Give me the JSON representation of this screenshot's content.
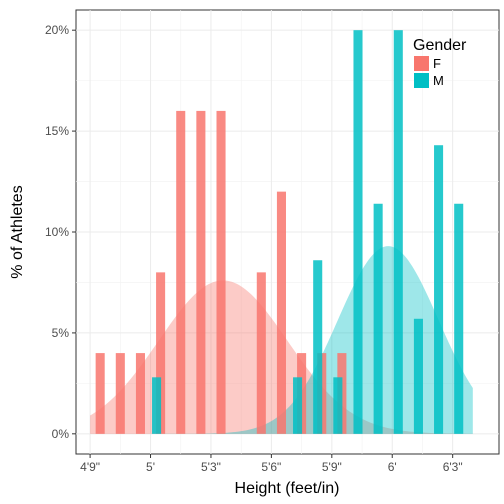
{
  "chart_data": {
    "type": "bar",
    "xlabel": "Height (feet/in)",
    "ylabel": "% of Athletes",
    "x_ticks": [
      {
        "value": 57,
        "label": "4'9\""
      },
      {
        "value": 60,
        "label": "5'"
      },
      {
        "value": 63,
        "label": "5'3\""
      },
      {
        "value": 66,
        "label": "5'6\""
      },
      {
        "value": 69,
        "label": "5'9\""
      },
      {
        "value": 72,
        "label": "6'"
      },
      {
        "value": 75,
        "label": "6'3\""
      }
    ],
    "y_ticks": [
      {
        "value": 0,
        "label": "0%"
      },
      {
        "value": 5,
        "label": "5%"
      },
      {
        "value": 10,
        "label": "10%"
      },
      {
        "value": 15,
        "label": "15%"
      },
      {
        "value": 20,
        "label": "20%"
      }
    ],
    "xlim": [
      56.3,
      77.3
    ],
    "ylim": [
      -1,
      21
    ],
    "grid": true,
    "legend": {
      "title": "Gender",
      "position": "top-right"
    },
    "series": [
      {
        "name": "F",
        "color": "#F8766D",
        "bars": [
          {
            "x": 57.5,
            "y": 4
          },
          {
            "x": 58.5,
            "y": 4
          },
          {
            "x": 59.5,
            "y": 4
          },
          {
            "x": 60.5,
            "y": 8
          },
          {
            "x": 61.5,
            "y": 16
          },
          {
            "x": 62.5,
            "y": 16
          },
          {
            "x": 63.5,
            "y": 16
          },
          {
            "x": 65.5,
            "y": 8
          },
          {
            "x": 66.5,
            "y": 12
          },
          {
            "x": 67.5,
            "y": 4
          },
          {
            "x": 68.5,
            "y": 4
          },
          {
            "x": 69.5,
            "y": 4
          }
        ],
        "density_curve": {
          "mean": 63.6,
          "sd": 3.2,
          "peak": 7.6
        }
      },
      {
        "name": "M",
        "color": "#00BFC4",
        "bars": [
          {
            "x": 60.3,
            "y": 2.8
          },
          {
            "x": 67.3,
            "y": 2.8
          },
          {
            "x": 68.3,
            "y": 8.6
          },
          {
            "x": 69.3,
            "y": 2.8
          },
          {
            "x": 70.3,
            "y": 20
          },
          {
            "x": 71.3,
            "y": 11.4
          },
          {
            "x": 72.3,
            "y": 20
          },
          {
            "x": 73.3,
            "y": 5.7
          },
          {
            "x": 74.3,
            "y": 14.3
          },
          {
            "x": 75.3,
            "y": 11.4
          }
        ],
        "density_curve": {
          "mean": 71.8,
          "sd": 2.5,
          "peak": 9.3
        }
      }
    ]
  }
}
